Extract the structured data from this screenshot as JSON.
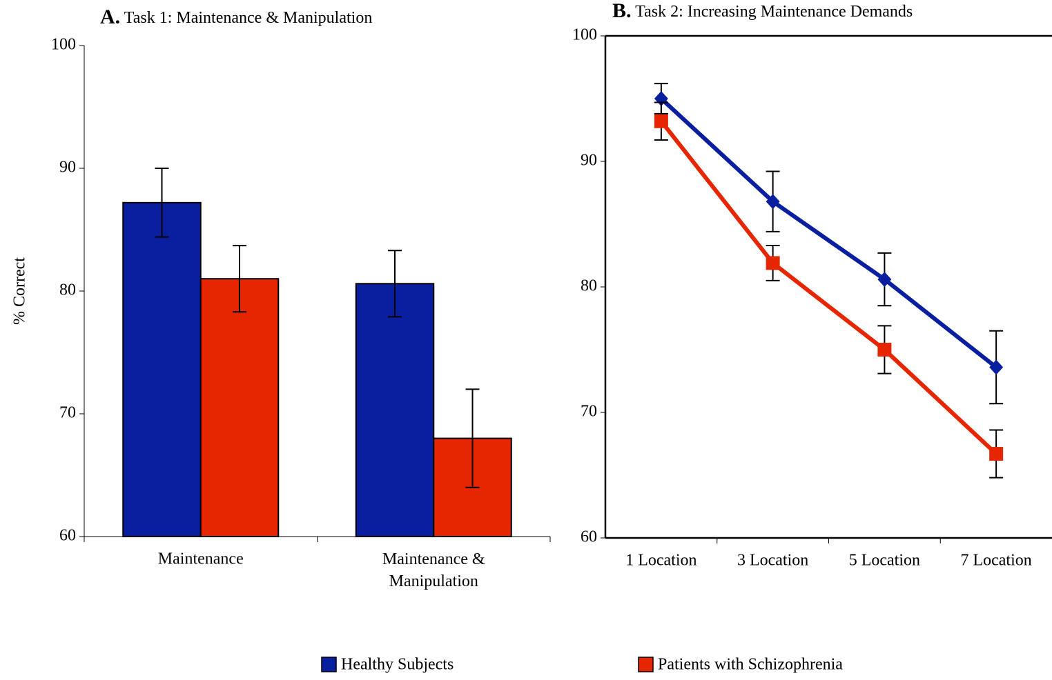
{
  "chart_data": [
    {
      "type": "bar",
      "panel_label": "A.",
      "title": "Task 1: Maintenance & Manipulation",
      "ylabel": "% Correct",
      "categories": [
        "Maintenance",
        "Maintenance & Manipulation"
      ],
      "series": [
        {
          "name": "Healthy Subjects",
          "color": "#0a1fa0",
          "values": [
            87.2,
            80.6
          ],
          "errors": [
            2.8,
            2.7
          ]
        },
        {
          "name": "Patients with Schizophrenia",
          "color": "#e62600",
          "values": [
            81.0,
            68.0
          ],
          "errors": [
            2.7,
            4.0
          ]
        }
      ],
      "ylim": [
        60,
        100
      ],
      "yticks": [
        60,
        70,
        80,
        90,
        100
      ]
    },
    {
      "type": "line",
      "panel_label": "B.",
      "title": "Task 2: Increasing Maintenance Demands",
      "categories": [
        "1 Location",
        "3 Location",
        "5 Location",
        "7 Location"
      ],
      "series": [
        {
          "color": "#0a1fa0",
          "marker": "diamond",
          "values": [
            95.0,
            86.8,
            80.6,
            73.6
          ],
          "errors": [
            1.2,
            2.4,
            2.1,
            2.9
          ]
        },
        {
          "color": "#e62600",
          "marker": "square",
          "values": [
            93.2,
            81.9,
            75.0,
            66.7
          ],
          "errors": [
            1.5,
            1.4,
            1.9,
            1.9
          ]
        }
      ],
      "ylim": [
        60,
        100
      ],
      "yticks": [
        60,
        70,
        80,
        90,
        100
      ]
    }
  ]
}
